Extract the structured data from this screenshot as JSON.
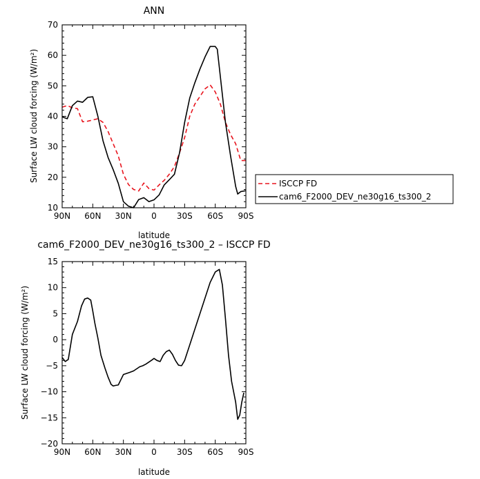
{
  "chart_data": [
    {
      "type": "line",
      "title": "ANN",
      "xlabel": "latitude",
      "ylabel": "Surface LW cloud forcing (W/m²)",
      "xlim": [
        90,
        -90
      ],
      "ylim": [
        10,
        70
      ],
      "x_ticks": [
        90,
        60,
        30,
        0,
        -30,
        -60,
        -90
      ],
      "x_tick_labels": [
        "90N",
        "60N",
        "30N",
        "0",
        "30S",
        "60S",
        "90S"
      ],
      "y_ticks": [
        10,
        20,
        30,
        40,
        50,
        60,
        70
      ],
      "y_tick_labels": [
        "10",
        "20",
        "30",
        "40",
        "50",
        "60",
        "70"
      ],
      "legend": "right",
      "series": [
        {
          "name": "ISCCP FD",
          "color": "#e8141d",
          "dash": "dashed",
          "x": [
            90,
            85,
            80,
            75,
            70,
            65,
            60,
            55,
            50,
            45,
            40,
            35,
            30,
            25,
            20,
            15,
            10,
            5,
            0,
            -5,
            -10,
            -15,
            -20,
            -25,
            -30,
            -35,
            -40,
            -45,
            -50,
            -55,
            -60,
            -65,
            -70,
            -75,
            -80,
            -85,
            -90
          ],
          "y": [
            43,
            43.5,
            42.8,
            42.5,
            38.2,
            38.4,
            38.8,
            39.2,
            38,
            35,
            31,
            27,
            21,
            17.6,
            16,
            15.5,
            18.1,
            16.3,
            15.8,
            17.5,
            19,
            21,
            23.5,
            28,
            33,
            40,
            44,
            46.5,
            49,
            50.3,
            48,
            44,
            38,
            34,
            31,
            25.5,
            25.5
          ]
        },
        {
          "name": "cam6_F2000_DEV_ne30g16_ts300_2",
          "color": "#000000",
          "dash": "solid",
          "x": [
            90,
            85,
            80,
            75,
            70,
            65,
            60,
            55,
            50,
            45,
            40,
            35,
            30,
            25,
            20,
            15,
            10,
            5,
            0,
            -5,
            -10,
            -15,
            -20,
            -25,
            -30,
            -35,
            -40,
            -45,
            -50,
            -55,
            -60,
            -62,
            -65,
            -70,
            -75,
            -80,
            -82,
            -85,
            -90
          ],
          "y": [
            39.8,
            39.2,
            43.5,
            45,
            44.6,
            46.2,
            46.4,
            40,
            32,
            26.5,
            22.5,
            18,
            12,
            10.5,
            10,
            12.7,
            13.3,
            12,
            12.6,
            14.2,
            17.5,
            19.2,
            21,
            28,
            38,
            46,
            51,
            55.5,
            59.5,
            62.9,
            62.9,
            62,
            53,
            38,
            27,
            17,
            14.5,
            15.3,
            15.6
          ]
        }
      ]
    },
    {
      "type": "line",
      "title": "cam6_F2000_DEV_ne30g16_ts300_2 – ISCCP FD",
      "xlabel": "latitude",
      "ylabel": "Surface LW cloud forcing (W/m²)",
      "xlim": [
        90,
        -90
      ],
      "ylim": [
        -20,
        15
      ],
      "x_ticks": [
        90,
        60,
        30,
        0,
        -30,
        -60,
        -90
      ],
      "x_tick_labels": [
        "90N",
        "60N",
        "30N",
        "0",
        "30S",
        "60S",
        "90S"
      ],
      "y_ticks": [
        -20,
        -15,
        -10,
        -5,
        0,
        5,
        10,
        15
      ],
      "y_tick_labels": [
        "−20",
        "−15",
        "−10",
        "−5",
        "0",
        "5",
        "10",
        "15"
      ],
      "series": [
        {
          "color": "#000000",
          "dash": "solid",
          "x": [
            90,
            87,
            84,
            80,
            75,
            71,
            68,
            65,
            62,
            60,
            58,
            55,
            52,
            48,
            45,
            42,
            40,
            38,
            35,
            32,
            30,
            27,
            24,
            20,
            17,
            14,
            11,
            8,
            5,
            2,
            0,
            -3,
            -6,
            -9,
            -12,
            -15,
            -18,
            -21,
            -24,
            -27,
            -30,
            -35,
            -40,
            -45,
            -50,
            -55,
            -60,
            -64,
            -67,
            -70,
            -73,
            -76,
            -80,
            -82,
            -84,
            -86,
            -88
          ],
          "y": [
            -3.4,
            -4.2,
            -3.8,
            1,
            3.5,
            6.5,
            7.8,
            8,
            7.6,
            5.5,
            3.2,
            0.3,
            -3,
            -5.5,
            -7.2,
            -8.6,
            -8.9,
            -8.8,
            -8.7,
            -7.5,
            -6.7,
            -6.5,
            -6.3,
            -6,
            -5.6,
            -5.2,
            -5,
            -4.7,
            -4.3,
            -3.9,
            -3.6,
            -4,
            -4.2,
            -3,
            -2.3,
            -2,
            -2.8,
            -4,
            -4.9,
            -5,
            -4,
            -1,
            2,
            5,
            8,
            11,
            13,
            13.5,
            10.5,
            4,
            -3,
            -8,
            -12,
            -15.3,
            -14.5,
            -12,
            -10.2
          ]
        }
      ]
    }
  ]
}
